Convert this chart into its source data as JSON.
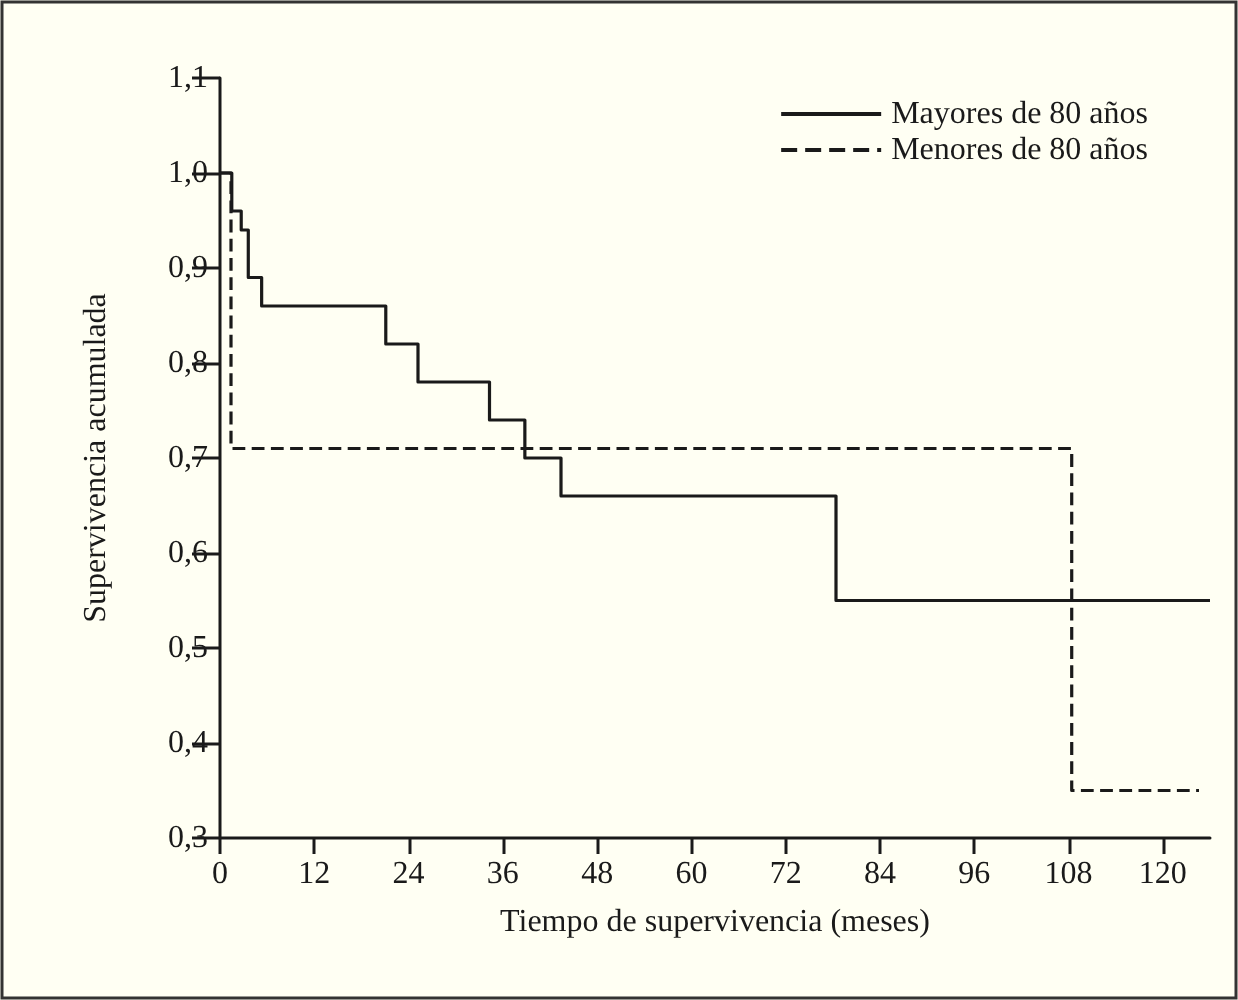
{
  "chart_data": {
    "type": "step",
    "xlabel": "Tiempo de supervivencia (meses)",
    "ylabel": "Supervivencia acumulada",
    "xlim": [
      0,
      126
    ],
    "xticks": [
      0,
      12,
      24,
      36,
      48,
      60,
      72,
      84,
      96,
      108,
      120
    ],
    "ylim": [
      0.3,
      1.1
    ],
    "yticks": [
      {
        "value": 0.3,
        "label": "0,3"
      },
      {
        "value": 0.4,
        "label": "0,4"
      },
      {
        "value": 0.5,
        "label": "0,5"
      },
      {
        "value": 0.6,
        "label": "0,6"
      },
      {
        "value": 0.7,
        "label": "0,7"
      },
      {
        "value": 0.8,
        "label": "0,8"
      },
      {
        "value": 0.9,
        "label": "0,9"
      },
      {
        "value": 1.0,
        "label": "1,0"
      },
      {
        "value": 1.1,
        "label": "1,1"
      }
    ],
    "grid": false,
    "legend": "top right",
    "marker": "none",
    "series": [
      {
        "name": "Mayores de 80 años",
        "color": "#1a1a1a",
        "line_style": "solid",
        "x": [
          0,
          1.5,
          2.7,
          3.6,
          5.3,
          21.1,
          25.2,
          34.3,
          38.8,
          43.4,
          78.4,
          126
        ],
        "values": [
          1,
          0.96,
          0.94,
          0.89,
          0.86,
          0.82,
          0.78,
          0.74,
          0.7,
          0.66,
          0.55,
          0.55
        ]
      },
      {
        "name": "Menores de 80 años",
        "color": "#1a1a1a",
        "line_style": "dashed",
        "x": [
          0,
          1.4,
          108.4,
          124.6
        ],
        "values": [
          1,
          0.71,
          0.35,
          0.35
        ]
      }
    ]
  }
}
